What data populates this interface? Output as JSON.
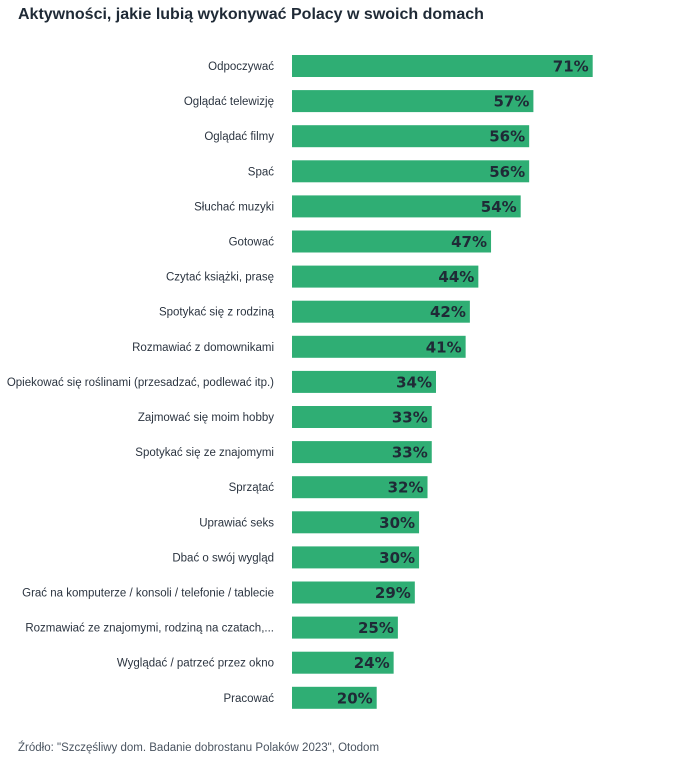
{
  "title": "Aktywności, jakie lubią wykonywać Polacy w swoich domach",
  "source": "Źródło: \"Szczęśliwy dom. Badanie dobrostanu Polaków 2023\", Otodom",
  "colors": {
    "bar": "#2fae74",
    "value_text": "#1f2a36"
  },
  "chart_data": {
    "type": "bar",
    "orientation": "horizontal",
    "title": "Aktywności, jakie lubią wykonywać Polacy w swoich domach",
    "xlabel": "",
    "ylabel": "",
    "xlim": [
      0,
      100
    ],
    "grid": false,
    "categories": [
      "Odpoczywać",
      "Oglądać telewizję",
      "Oglądać filmy",
      "Spać",
      "Słuchać muzyki",
      "Gotować",
      "Czytać książki, prasę",
      "Spotykać się z rodziną",
      "Rozmawiać z domownikami",
      "Opiekować się roślinami (przesadzać, podlewać itp.)",
      "Zajmować się moim hobby",
      "Spotykać się ze znajomymi",
      "Sprzątać",
      "Uprawiać seks",
      "Dbać o swój wygląd",
      "Grać na komputerze / konsoli / telefonie / tablecie",
      "Rozmawiać ze znajomymi, rodziną na czatach,...",
      "Wyglądać / patrzeć przez okno",
      "Pracować"
    ],
    "values": [
      71,
      57,
      56,
      56,
      54,
      47,
      44,
      42,
      41,
      34,
      33,
      33,
      32,
      30,
      30,
      29,
      25,
      24,
      20
    ],
    "value_labels": [
      "71%",
      "57%",
      "56%",
      "56%",
      "54%",
      "47%",
      "44%",
      "42%",
      "41%",
      "34%",
      "33%",
      "33%",
      "32%",
      "30%",
      "30%",
      "29%",
      "25%",
      "24%",
      "20%"
    ]
  }
}
